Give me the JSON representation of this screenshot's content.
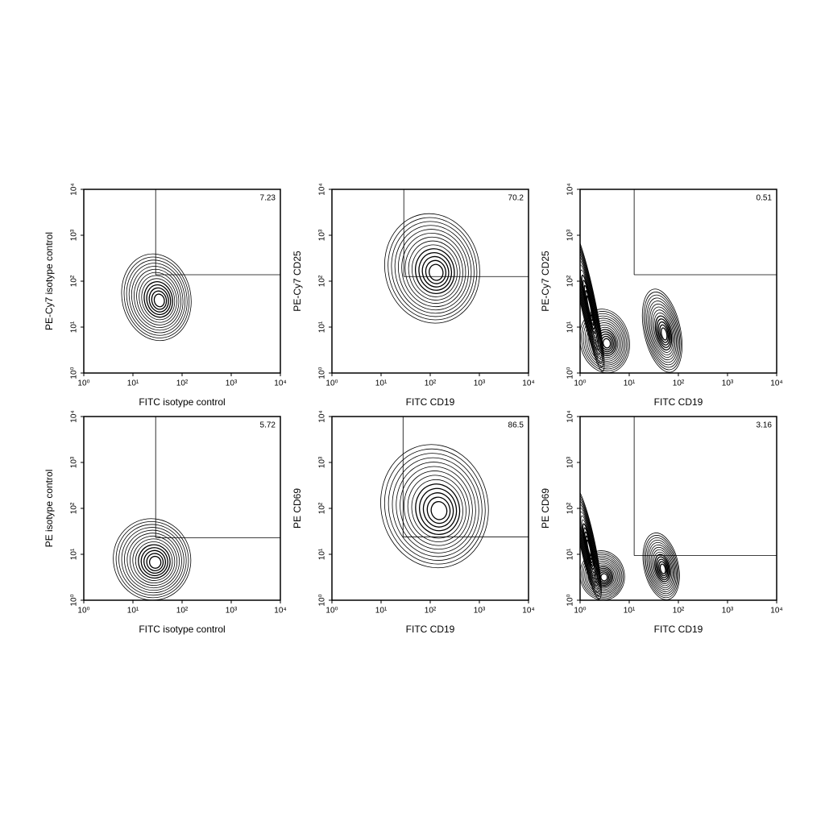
{
  "chart_data": [
    {
      "type": "contour",
      "xlabel": "FITC isotype control",
      "ylabel": "PE-Cy7 isotype control",
      "xscale": "log",
      "yscale": "log",
      "color": "#000000",
      "xlim": [
        1,
        10000
      ],
      "ylim": [
        1,
        10000
      ],
      "xticks": [
        {
          "value": 1,
          "label": "10⁰"
        },
        {
          "value": 10,
          "label": "10¹"
        },
        {
          "value": 100,
          "label": "10²"
        },
        {
          "value": 1000,
          "label": "10³"
        },
        {
          "value": 10000,
          "label": "10⁴"
        }
      ],
      "yticks": [
        {
          "value": 1,
          "label": "10⁰"
        },
        {
          "value": 10,
          "label": "10¹"
        },
        {
          "value": 100,
          "label": "10²"
        },
        {
          "value": 1000,
          "label": "10³"
        },
        {
          "value": 10000,
          "label": "10⁴"
        }
      ],
      "gate": {
        "x": 29,
        "y": 138,
        "percent": 7.23
      },
      "populations": [
        {
          "x": [
            6,
            150
          ],
          "y": [
            5,
            400
          ]
        }
      ]
    },
    {
      "type": "contour",
      "xlabel": "FITC CD19",
      "ylabel": "PE-Cy7 CD25",
      "xscale": "log",
      "yscale": "log",
      "color": "#000000",
      "xlim": [
        1,
        10000
      ],
      "ylim": [
        1,
        10000
      ],
      "xticks": [
        {
          "value": 1,
          "label": "10⁰"
        },
        {
          "value": 10,
          "label": "10¹"
        },
        {
          "value": 100,
          "label": "10²"
        },
        {
          "value": 1000,
          "label": "10³"
        },
        {
          "value": 10000,
          "label": "10⁴"
        }
      ],
      "yticks": [
        {
          "value": 1,
          "label": "10⁰"
        },
        {
          "value": 10,
          "label": "10¹"
        },
        {
          "value": 100,
          "label": "10²"
        },
        {
          "value": 1000,
          "label": "10³"
        },
        {
          "value": 10000,
          "label": "10⁴"
        }
      ],
      "gate": {
        "x": 29,
        "y": 126,
        "percent": 70.2
      },
      "populations": [
        {
          "x": [
            12,
            1000
          ],
          "y": [
            12,
            3000
          ]
        }
      ]
    },
    {
      "type": "contour",
      "xlabel": "FITC CD19",
      "ylabel": "PE-Cy7 CD25",
      "xscale": "log",
      "yscale": "log",
      "color": "#000000",
      "xlim": [
        1,
        10000
      ],
      "ylim": [
        1,
        10000
      ],
      "xticks": [
        {
          "value": 1,
          "label": "10⁰"
        },
        {
          "value": 10,
          "label": "10¹"
        },
        {
          "value": 100,
          "label": "10²"
        },
        {
          "value": 1000,
          "label": "10³"
        },
        {
          "value": 10000,
          "label": "10⁴"
        }
      ],
      "yticks": [
        {
          "value": 1,
          "label": "10⁰"
        },
        {
          "value": 10,
          "label": "10¹"
        },
        {
          "value": 100,
          "label": "10²"
        },
        {
          "value": 1000,
          "label": "10³"
        },
        {
          "value": 10000,
          "label": "10⁴"
        }
      ],
      "gate": {
        "x": 12.6,
        "y": 138,
        "percent": 0.51
      },
      "populations": [
        {
          "x": [
            1,
            10
          ],
          "y": [
            1,
            25
          ]
        },
        {
          "x": [
            20,
            110
          ],
          "y": [
            1,
            70
          ]
        },
        {
          "x": [
            1,
            2
          ],
          "y": [
            1,
            1500
          ]
        }
      ]
    },
    {
      "type": "contour",
      "xlabel": "FITC isotype control",
      "ylabel": "PE isotype control",
      "xscale": "log",
      "yscale": "log",
      "color": "#000000",
      "xlim": [
        1,
        10000
      ],
      "ylim": [
        1,
        10000
      ],
      "xticks": [
        {
          "value": 1,
          "label": "10⁰"
        },
        {
          "value": 10,
          "label": "10¹"
        },
        {
          "value": 100,
          "label": "10²"
        },
        {
          "value": 1000,
          "label": "10³"
        },
        {
          "value": 10000,
          "label": "10⁴"
        }
      ],
      "yticks": [
        {
          "value": 1,
          "label": "10⁰"
        },
        {
          "value": 10,
          "label": "10¹"
        },
        {
          "value": 100,
          "label": "10²"
        },
        {
          "value": 1000,
          "label": "10³"
        },
        {
          "value": 10000,
          "label": "10⁴"
        }
      ],
      "gate": {
        "x": 29,
        "y": 23,
        "percent": 5.72
      },
      "populations": [
        {
          "x": [
            4,
            150
          ],
          "y": [
            1,
            60
          ]
        }
      ]
    },
    {
      "type": "contour",
      "xlabel": "FITC CD19",
      "ylabel": "PE CD69",
      "xscale": "log",
      "yscale": "log",
      "color": "#000000",
      "xlim": [
        1,
        10000
      ],
      "ylim": [
        1,
        10000
      ],
      "xticks": [
        {
          "value": 1,
          "label": "10⁰"
        },
        {
          "value": 10,
          "label": "10¹"
        },
        {
          "value": 100,
          "label": "10²"
        },
        {
          "value": 1000,
          "label": "10³"
        },
        {
          "value": 10000,
          "label": "10⁴"
        }
      ],
      "yticks": [
        {
          "value": 1,
          "label": "10⁰"
        },
        {
          "value": 10,
          "label": "10¹"
        },
        {
          "value": 100,
          "label": "10²"
        },
        {
          "value": 1000,
          "label": "10³"
        },
        {
          "value": 10000,
          "label": "10⁴"
        }
      ],
      "gate": {
        "x": 28,
        "y": 24,
        "percent": 86.5
      },
      "populations": [
        {
          "x": [
            10,
            1500
          ],
          "y": [
            5,
            2500
          ]
        }
      ]
    },
    {
      "type": "contour",
      "xlabel": "FITC CD19",
      "ylabel": "PE CD69",
      "xscale": "log",
      "yscale": "log",
      "color": "#000000",
      "xlim": [
        1,
        10000
      ],
      "ylim": [
        1,
        10000
      ],
      "xticks": [
        {
          "value": 1,
          "label": "10⁰"
        },
        {
          "value": 10,
          "label": "10¹"
        },
        {
          "value": 100,
          "label": "10²"
        },
        {
          "value": 1000,
          "label": "10³"
        },
        {
          "value": 10000,
          "label": "10⁴"
        }
      ],
      "yticks": [
        {
          "value": 1,
          "label": "10⁰"
        },
        {
          "value": 10,
          "label": "10¹"
        },
        {
          "value": 100,
          "label": "10²"
        },
        {
          "value": 1000,
          "label": "10³"
        },
        {
          "value": 10000,
          "label": "10⁴"
        }
      ],
      "gate": {
        "x": 12.6,
        "y": 9.4,
        "percent": 3.16
      },
      "populations": [
        {
          "x": [
            1,
            8
          ],
          "y": [
            1,
            12
          ]
        },
        {
          "x": [
            20,
            100
          ],
          "y": [
            1,
            30
          ]
        },
        {
          "x": [
            1,
            2
          ],
          "y": [
            1,
            300
          ]
        }
      ]
    }
  ]
}
